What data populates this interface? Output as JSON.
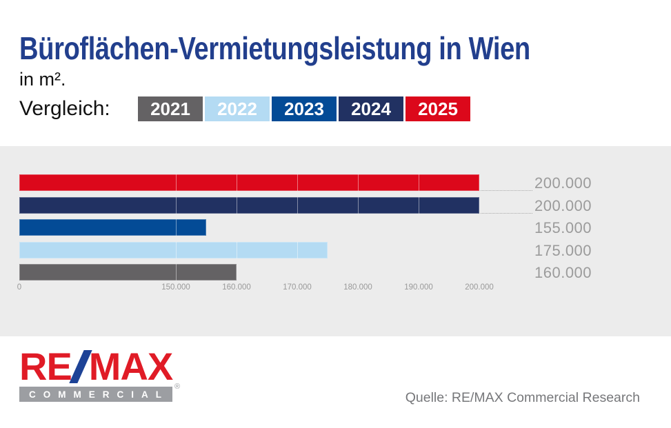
{
  "title": "Büroflächen-Vermietungsleistung in Wien",
  "subtitle": "in m².",
  "comparison_label": "Vergleich:",
  "legend": [
    {
      "label": "2021",
      "color": "#646264",
      "text_color": "#ffffff"
    },
    {
      "label": "2022",
      "color": "#b4dbf3",
      "text_color": "#ffffff"
    },
    {
      "label": "2023",
      "color": "#034b96",
      "text_color": "#ffffff"
    },
    {
      "label": "2024",
      "color": "#213162",
      "text_color": "#ffffff"
    },
    {
      "label": "2025",
      "color": "#dc081b",
      "text_color": "#ffffff"
    }
  ],
  "chart_data": {
    "type": "bar",
    "orientation": "horizontal",
    "title": "Büroflächen-Vermietungsleistung in Wien",
    "unit": "in m².",
    "categories": [
      "2025",
      "2024",
      "2023",
      "2022",
      "2021"
    ],
    "values": [
      200000,
      200000,
      155000,
      175000,
      160000
    ],
    "value_labels": [
      "200.000",
      "200.000",
      "155.000",
      "175.000",
      "160.000"
    ],
    "colors": [
      "#dc081b",
      "#213162",
      "#034b96",
      "#b4dbf3",
      "#646264"
    ],
    "x_ticks": [
      0,
      150000,
      160000,
      170000,
      180000,
      190000,
      200000
    ],
    "x_tick_labels": [
      "0",
      "150.000",
      "160.000",
      "170.000",
      "180.000",
      "190.000",
      "200.000"
    ],
    "axis_break_between_0_and_150000": true,
    "grid": "tick-lines-drawn-on-bars",
    "legend_position": "top"
  },
  "footer": {
    "source": "Quelle: RE/MAX Commercial Research",
    "logo": {
      "re": "RE",
      "slash": "/",
      "max": "MAX",
      "sub": "COMMERCIAL",
      "registered": "®"
    }
  },
  "colors": {
    "title-blue": "#223f8d",
    "text-dark": "#111111",
    "panel-bg": "#ececec",
    "value-label-gray": "#9b9b9b",
    "axis-gray": "#999999",
    "leader-gray": "#a9a9a9",
    "source-gray": "#76777a",
    "logo-red": "#e01b26",
    "logo-slash-blue": "#1d4296",
    "logo-bar-gray": "#9c9ea2"
  }
}
